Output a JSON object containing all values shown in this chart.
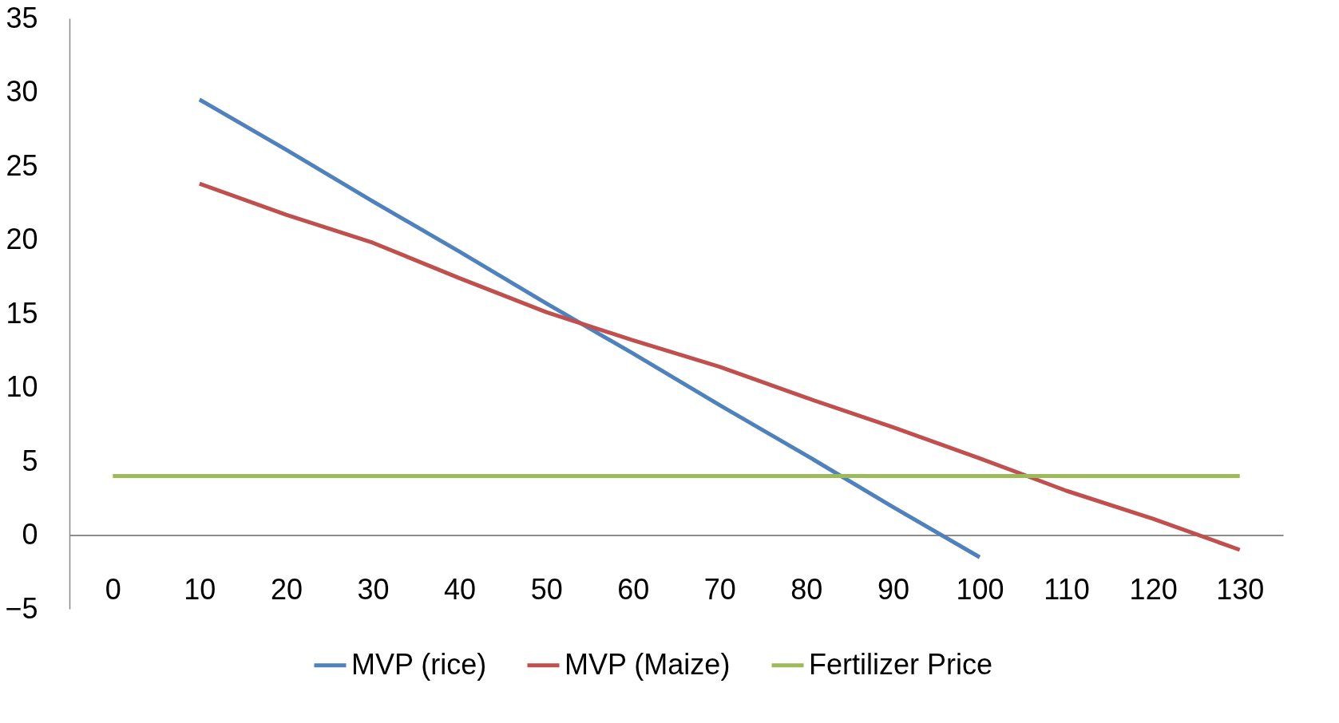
{
  "chart_data": {
    "type": "line",
    "categories": [
      "0",
      "10",
      "20",
      "30",
      "40",
      "50",
      "60",
      "70",
      "80",
      "90",
      "100",
      "110",
      "120",
      "130"
    ],
    "series": [
      {
        "name": "MVP (rice)",
        "color": "#4f81bd",
        "values": [
          null,
          29.5,
          26.1,
          22.6,
          19.2,
          15.7,
          12.3,
          8.8,
          5.4,
          1.9,
          -1.5,
          null,
          null,
          null
        ]
      },
      {
        "name": "MVP (Maize)",
        "color": "#c0504d",
        "values": [
          null,
          23.8,
          21.7,
          19.8,
          17.4,
          15.1,
          13.2,
          11.4,
          9.3,
          7.3,
          5.2,
          3.0,
          1.1,
          -1.0
        ]
      },
      {
        "name": "Fertilizer Price",
        "color": "#9bbb59",
        "values": [
          4,
          4,
          4,
          4,
          4,
          4,
          4,
          4,
          4,
          4,
          4,
          4,
          4,
          4
        ]
      }
    ],
    "ylim": [
      -5,
      35
    ],
    "yticks": [
      -5,
      0,
      5,
      10,
      15,
      20,
      25,
      30,
      35
    ],
    "grid": false,
    "legend": "bottom",
    "marker": "none",
    "line_style": "solid"
  }
}
